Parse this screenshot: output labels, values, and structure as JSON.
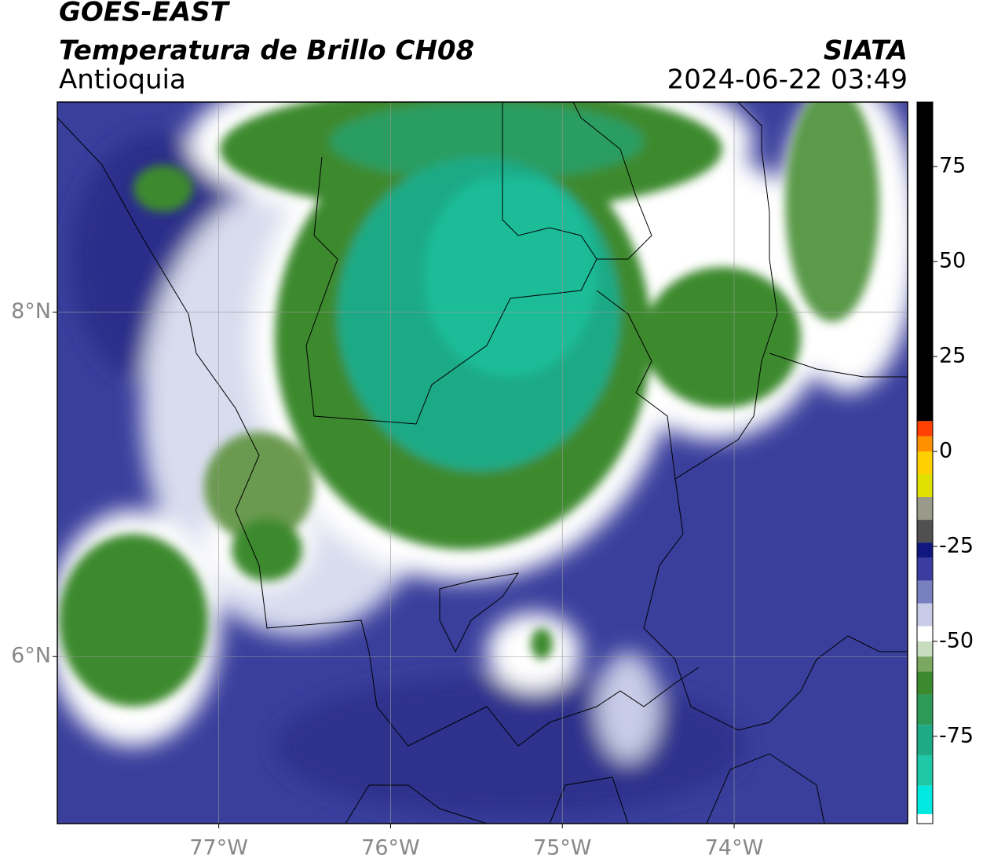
{
  "header": {
    "satellite": "GOES-EAST",
    "product": "Temperatura de Brillo CH08",
    "region": "Antioquia",
    "agency": "SIATA",
    "datetime": "2024-06-22 03:49"
  },
  "map": {
    "xlim": [
      -77.94,
      -72.99
    ],
    "ylim": [
      5.03,
      9.22
    ],
    "xticks": [
      {
        "value": -77,
        "label": "77°W"
      },
      {
        "value": -76,
        "label": "76°W"
      },
      {
        "value": -75,
        "label": "75°W"
      },
      {
        "value": -74,
        "label": "74°W"
      }
    ],
    "yticks": [
      {
        "value": 6,
        "label": "6°N"
      },
      {
        "value": 8,
        "label": "8°N"
      }
    ],
    "grid": true
  },
  "colorbar": {
    "range": [
      -98,
      92
    ],
    "ticks": [
      -75,
      -50,
      -25,
      0,
      25,
      50,
      75
    ],
    "stops": [
      {
        "value": -98,
        "color": "#ffffff"
      },
      {
        "value": -95.5,
        "color": "#00e8e0"
      },
      {
        "value": -88,
        "color": "#1fc8a6"
      },
      {
        "value": -80,
        "color": "#1faa86"
      },
      {
        "value": -72,
        "color": "#2e9a58"
      },
      {
        "value": -64,
        "color": "#3d8a2e"
      },
      {
        "value": -58,
        "color": "#7aa860"
      },
      {
        "value": -54,
        "color": "#c8dcc0"
      },
      {
        "value": -50,
        "color": "#ffffff"
      },
      {
        "value": -46,
        "color": "#c8cce6"
      },
      {
        "value": -40,
        "color": "#7880c0"
      },
      {
        "value": -34,
        "color": "#3c3ca0"
      },
      {
        "value": -28,
        "color": "#101880"
      },
      {
        "value": -24,
        "color": "#505050"
      },
      {
        "value": -18,
        "color": "#9a9a8a"
      },
      {
        "value": -12,
        "color": "#e0e000"
      },
      {
        "value": -6,
        "color": "#ffd000"
      },
      {
        "value": 0,
        "color": "#ff9000"
      },
      {
        "value": 4,
        "color": "#ff4000"
      },
      {
        "value": 8,
        "color": "#000000"
      }
    ]
  }
}
